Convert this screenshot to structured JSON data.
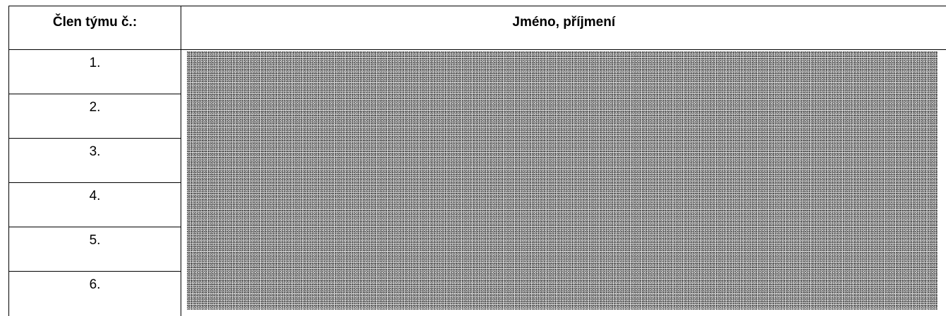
{
  "table": {
    "header": {
      "member_col": "Člen týmu č.:",
      "name_col": "Jméno, příjmení"
    },
    "rows": [
      {
        "number": "1.",
        "name": ""
      },
      {
        "number": "2.",
        "name": ""
      },
      {
        "number": "3.",
        "name": ""
      },
      {
        "number": "4.",
        "name": ""
      },
      {
        "number": "5.",
        "name": ""
      },
      {
        "number": "6.",
        "name": ""
      }
    ]
  },
  "redaction": {
    "style": "noise-pattern",
    "base_color": "#b9b9b9"
  }
}
